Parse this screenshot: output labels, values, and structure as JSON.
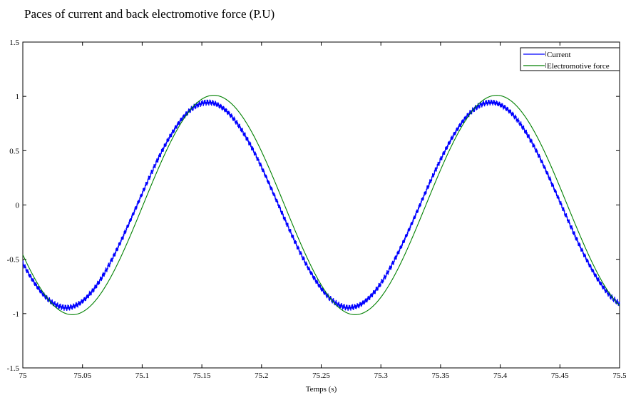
{
  "chart_data": {
    "type": "line",
    "title": "Paces of current and back electromotive force (P.U)",
    "xlabel": "Temps (s)",
    "ylabel": "",
    "xlim": [
      75,
      75.5
    ],
    "ylim": [
      -1.5,
      1.5
    ],
    "x_ticks": [
      "75",
      "75.05",
      "75.1",
      "75.15",
      "75.2",
      "75.25",
      "75.3",
      "75.35",
      "75.4",
      "75.45",
      "75.5"
    ],
    "y_ticks": [
      "1.5",
      "1",
      "0.5",
      "0",
      "-0.5",
      "-1",
      "-1.5"
    ],
    "grid": false,
    "legend_position": "top-right",
    "series": [
      {
        "name": "Current",
        "color": "#0000ff",
        "amplitude": 0.945,
        "frequency_hz": 4.22,
        "peak_times": [
          75.155,
          75.392
        ],
        "trough_times": [
          75.037,
          75.274
        ],
        "value_at_start": -0.57,
        "value_at_end": -0.93,
        "noise": "high-frequency ripple of about ±0.02"
      },
      {
        "name": "Electromotive force",
        "color": "#008000",
        "amplitude": 1.01,
        "frequency_hz": 4.22,
        "peak_times": [
          75.16,
          75.397
        ],
        "trough_times": [
          75.042,
          75.279
        ],
        "value_at_start": -0.44,
        "value_at_end": -0.92
      }
    ]
  }
}
